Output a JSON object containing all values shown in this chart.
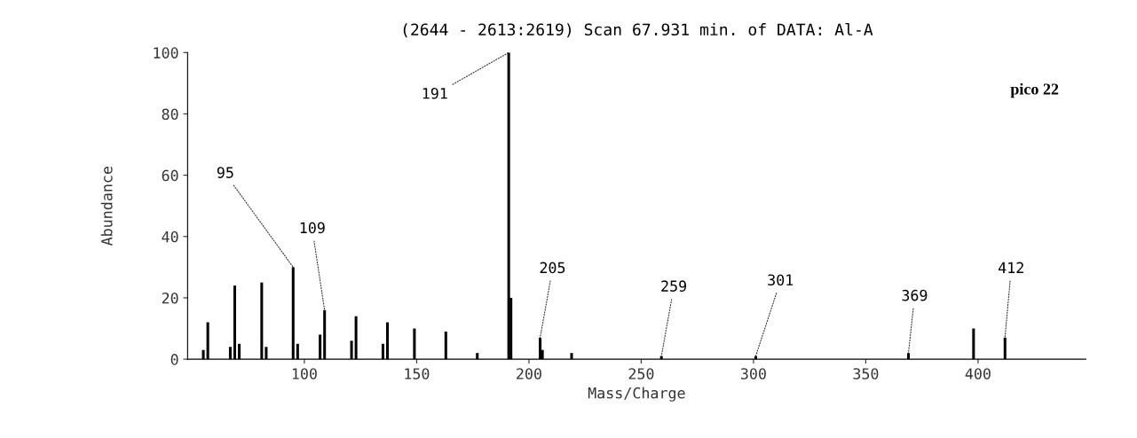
{
  "chart_data": {
    "type": "bar",
    "title": "(2644 - 2613:2619) Scan 67.931 min. of DATA: Al-A",
    "xlabel": "Mass/Charge",
    "ylabel": "Abundance",
    "color": "#000000",
    "x": [
      55,
      57,
      67,
      69,
      71,
      81,
      83,
      95,
      97,
      107,
      109,
      121,
      123,
      135,
      137,
      149,
      163,
      177,
      191,
      192,
      205,
      206,
      219,
      259,
      301,
      369,
      398,
      412
    ],
    "values": [
      3,
      12,
      4,
      24,
      5,
      25,
      4,
      30,
      5,
      8,
      16,
      6,
      14,
      5,
      12,
      10,
      9,
      2,
      100,
      20,
      7,
      3,
      2,
      1,
      1,
      2,
      10,
      7
    ],
    "xlim": [
      48,
      448
    ],
    "xticks": [
      100,
      150,
      200,
      250,
      300,
      350,
      400
    ],
    "ylim": [
      0,
      100
    ],
    "yticks": [
      0,
      20,
      40,
      60,
      80,
      100
    ],
    "annotations": [
      {
        "text": "95",
        "x": 95,
        "y": 30
      },
      {
        "text": "109",
        "x": 109,
        "y": 16
      },
      {
        "text": "191",
        "x": 191,
        "y": 100
      },
      {
        "text": "205",
        "x": 205,
        "y": 7
      },
      {
        "text": "259",
        "x": 259,
        "y": 1
      },
      {
        "text": "301",
        "x": 301,
        "y": 1
      },
      {
        "text": "369",
        "x": 369,
        "y": 2
      },
      {
        "text": "412",
        "x": 412,
        "y": 7
      },
      "pico 22"
    ],
    "grid": false,
    "legend": false
  }
}
